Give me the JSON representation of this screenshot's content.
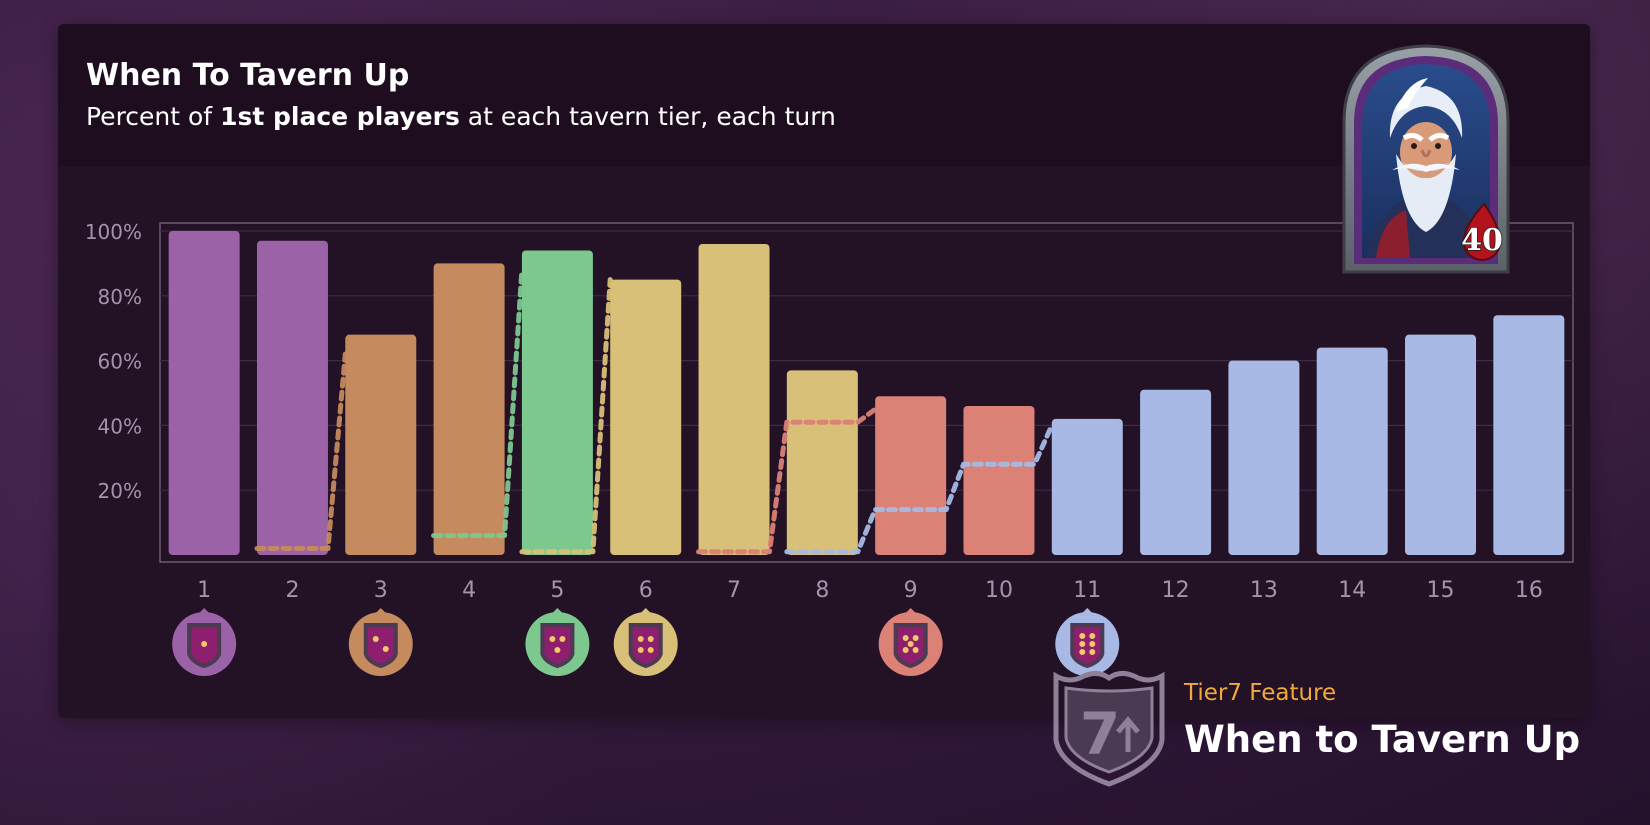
{
  "title": "When To Tavern Up",
  "subtitle": {
    "prefix": "Percent of ",
    "bold": "1st place players",
    "suffix": " at each tavern tier, each turn"
  },
  "hero": {
    "portrait_icon": "hero-portrait-icon",
    "health": "40"
  },
  "footer": {
    "logo_icon": "tier7-logo-icon",
    "logo_text": "7",
    "label": "Tier7 Feature",
    "title": "When to Tavern Up"
  },
  "colors": {
    "tier1": "#9b62a8",
    "tier2": "#c58a5e",
    "tier3": "#7cc88f",
    "tier4": "#d8c078",
    "tier5": "#db8176",
    "tier6": "#a7b9e4"
  },
  "chart_data": {
    "type": "bar",
    "title": "When To Tavern Up",
    "xlabel": "",
    "ylabel": "",
    "ylim": [
      0,
      100
    ],
    "yticks": [
      "20%",
      "40%",
      "60%",
      "80%",
      "100%"
    ],
    "categories": [
      "1",
      "2",
      "3",
      "4",
      "5",
      "6",
      "7",
      "8",
      "9",
      "10",
      "11",
      "12",
      "13",
      "14",
      "15",
      "16"
    ],
    "values": [
      100,
      97,
      68,
      90,
      94,
      85,
      96,
      57,
      49,
      46,
      42,
      51,
      60,
      64,
      68,
      74
    ],
    "bar_tiers": [
      1,
      1,
      2,
      2,
      3,
      4,
      4,
      4,
      5,
      5,
      6,
      6,
      6,
      6,
      6,
      6
    ],
    "next_tier_series": [
      {
        "turns": [
          "2",
          "3"
        ],
        "values": [
          2,
          62
        ],
        "tier": 2
      },
      {
        "turns": [
          "4",
          "5"
        ],
        "values": [
          6,
          88
        ],
        "tier": 3
      },
      {
        "turns": [
          "5",
          "6"
        ],
        "values": [
          1,
          85
        ],
        "tier": 4
      },
      {
        "turns": [
          "7",
          "8",
          "9"
        ],
        "values": [
          1,
          41,
          45
        ],
        "tier": 5
      },
      {
        "turns": [
          "8",
          "9",
          "10",
          "11"
        ],
        "values": [
          1,
          14,
          28,
          40
        ],
        "tier": 6
      }
    ],
    "tier_badges": [
      {
        "turn": "1",
        "tier": 1
      },
      {
        "turn": "3",
        "tier": 2
      },
      {
        "turn": "5",
        "tier": 3
      },
      {
        "turn": "6",
        "tier": 4
      },
      {
        "turn": "9",
        "tier": 5
      },
      {
        "turn": "11",
        "tier": 6
      }
    ],
    "grid": true,
    "legend": "none"
  }
}
